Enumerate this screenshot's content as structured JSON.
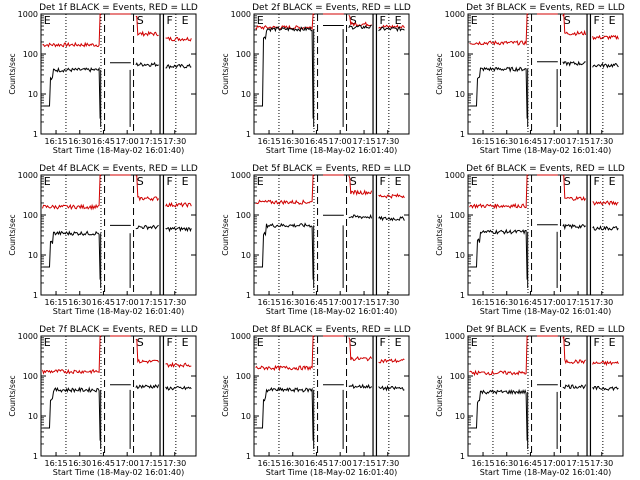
{
  "chart_data": [
    {
      "type": "line",
      "title": "Det 1f BLACK = Events, RED = LLD",
      "xlabel": "Start Time (18-May-02 16:01:40)",
      "ylabel": "Counts/sec",
      "yscale": "log",
      "ylim": [
        1,
        1000
      ],
      "y_ticks": [
        "1",
        "10",
        "100",
        "1000"
      ],
      "x_ticks": [
        "16:15",
        "16:30",
        "16:45",
        "17:00",
        "17:15",
        "17:30"
      ],
      "markers": [
        "E",
        "S",
        "F",
        "E"
      ],
      "series": [
        {
          "color": "#d00000",
          "mode": "lld",
          "base": 170,
          "burst": 1000,
          "post": 320,
          "decay": 240
        },
        {
          "color": "#000000",
          "mode": "events",
          "base": 40,
          "post": 55
        }
      ]
    },
    {
      "type": "line",
      "title": "Det 2f BLACK = Events, RED = LLD",
      "xlabel": "Start Time (18-May-02 16:01:40)",
      "ylabel": "Counts/sec",
      "yscale": "log",
      "ylim": [
        1,
        1000
      ],
      "y_ticks": [
        "1",
        "10",
        "100",
        "1000"
      ],
      "x_ticks": [
        "16:15",
        "16:30",
        "16:45",
        "17:00",
        "17:15",
        "17:30"
      ],
      "markers": [
        "E",
        "S",
        "F",
        "E"
      ],
      "series": [
        {
          "color": "#d00000",
          "mode": "lld",
          "base": 460,
          "burst": 1000,
          "post": 560,
          "decay": 480
        },
        {
          "color": "#000000",
          "mode": "events",
          "base": 420,
          "post": 470
        }
      ]
    },
    {
      "type": "line",
      "title": "Det 3f BLACK = Events, RED = LLD",
      "xlabel": "Start Time (18-May-02 16:01:40)",
      "ylabel": "Counts/sec",
      "yscale": "log",
      "ylim": [
        1,
        1000
      ],
      "y_ticks": [
        "1",
        "10",
        "100",
        "1000"
      ],
      "x_ticks": [
        "16:15",
        "16:30",
        "16:45",
        "17:00",
        "17:15",
        "17:30"
      ],
      "markers": [
        "E",
        "S",
        "F",
        "E"
      ],
      "series": [
        {
          "color": "#d00000",
          "mode": "lld",
          "base": 190,
          "burst": 1000,
          "post": 330,
          "decay": 260
        },
        {
          "color": "#000000",
          "mode": "events",
          "base": 42,
          "post": 58
        }
      ]
    },
    {
      "type": "line",
      "title": "Det 4f BLACK = Events, RED = LLD",
      "xlabel": "Start Time (18-May-02 16:01:40)",
      "ylabel": "Counts/sec",
      "yscale": "log",
      "ylim": [
        1,
        1000
      ],
      "y_ticks": [
        "1",
        "10",
        "100",
        "1000"
      ],
      "x_ticks": [
        "16:15",
        "16:30",
        "16:45",
        "17:00",
        "17:15",
        "17:30"
      ],
      "markers": [
        "E",
        "S",
        "F",
        "E"
      ],
      "series": [
        {
          "color": "#d00000",
          "mode": "lld",
          "base": 160,
          "burst": 1000,
          "post": 260,
          "decay": 180
        },
        {
          "color": "#000000",
          "mode": "events",
          "base": 35,
          "post": 50
        }
      ]
    },
    {
      "type": "line",
      "title": "Det 5f BLACK = Events, RED = LLD",
      "xlabel": "Start Time (18-May-02 16:01:40)",
      "ylabel": "Counts/sec",
      "yscale": "log",
      "ylim": [
        1,
        1000
      ],
      "y_ticks": [
        "1",
        "10",
        "100",
        "1000"
      ],
      "x_ticks": [
        "16:15",
        "16:30",
        "16:45",
        "17:00",
        "17:15",
        "17:30"
      ],
      "markers": [
        "E",
        "S",
        "F",
        "E"
      ],
      "series": [
        {
          "color": "#d00000",
          "mode": "lld",
          "base": 210,
          "burst": 1000,
          "post": 370,
          "decay": 300
        },
        {
          "color": "#000000",
          "mode": "events",
          "base": 55,
          "post": 90
        }
      ]
    },
    {
      "type": "line",
      "title": "Det 6f BLACK = Events, RED = LLD",
      "xlabel": "Start Time (18-May-02 16:01:40)",
      "ylabel": "Counts/sec",
      "yscale": "log",
      "ylim": [
        1,
        1000
      ],
      "y_ticks": [
        "1",
        "10",
        "100",
        "1000"
      ],
      "x_ticks": [
        "16:15",
        "16:30",
        "16:45",
        "17:00",
        "17:15",
        "17:30"
      ],
      "markers": [
        "E",
        "S",
        "F",
        "E"
      ],
      "series": [
        {
          "color": "#d00000",
          "mode": "lld",
          "base": 170,
          "burst": 1000,
          "post": 260,
          "decay": 200
        },
        {
          "color": "#000000",
          "mode": "events",
          "base": 38,
          "post": 52
        }
      ]
    },
    {
      "type": "line",
      "title": "Det 7f BLACK = Events, RED = LLD",
      "xlabel": "Start Time (18-May-02 16:01:40)",
      "ylabel": "Counts/sec",
      "yscale": "log",
      "ylim": [
        1,
        1000
      ],
      "y_ticks": [
        "1",
        "10",
        "100",
        "1000"
      ],
      "x_ticks": [
        "16:15",
        "16:30",
        "16:45",
        "17:00",
        "17:15",
        "17:30"
      ],
      "markers": [
        "E",
        "S",
        "F",
        "E"
      ],
      "series": [
        {
          "color": "#d00000",
          "mode": "lld",
          "base": 130,
          "burst": 1000,
          "post": 230,
          "decay": 190
        },
        {
          "color": "#000000",
          "mode": "events",
          "base": 45,
          "post": 55
        }
      ]
    },
    {
      "type": "line",
      "title": "Det 8f BLACK = Events, RED = LLD",
      "xlabel": "Start Time (18-May-02 16:01:40)",
      "ylabel": "Counts/sec",
      "yscale": "log",
      "ylim": [
        1,
        1000
      ],
      "y_ticks": [
        "1",
        "10",
        "100",
        "1000"
      ],
      "x_ticks": [
        "16:15",
        "16:30",
        "16:45",
        "17:00",
        "17:15",
        "17:30"
      ],
      "markers": [
        "E",
        "S",
        "F",
        "E"
      ],
      "series": [
        {
          "color": "#d00000",
          "mode": "lld",
          "base": 160,
          "burst": 1000,
          "post": 270,
          "decay": 240
        },
        {
          "color": "#000000",
          "mode": "events",
          "base": 45,
          "post": 55
        }
      ]
    },
    {
      "type": "line",
      "title": "Det 9f BLACK = Events, RED = LLD",
      "xlabel": "Start Time (18-May-02 16:01:40)",
      "ylabel": "Counts/sec",
      "yscale": "log",
      "ylim": [
        1,
        1000
      ],
      "y_ticks": [
        "1",
        "10",
        "100",
        "1000"
      ],
      "x_ticks": [
        "16:15",
        "16:30",
        "16:45",
        "17:00",
        "17:15",
        "17:30"
      ],
      "markers": [
        "E",
        "S",
        "F",
        "E"
      ],
      "series": [
        {
          "color": "#d00000",
          "mode": "lld",
          "base": 120,
          "burst": 1000,
          "post": 230,
          "decay": 210
        },
        {
          "color": "#000000",
          "mode": "events",
          "base": 40,
          "post": 55
        }
      ]
    }
  ]
}
